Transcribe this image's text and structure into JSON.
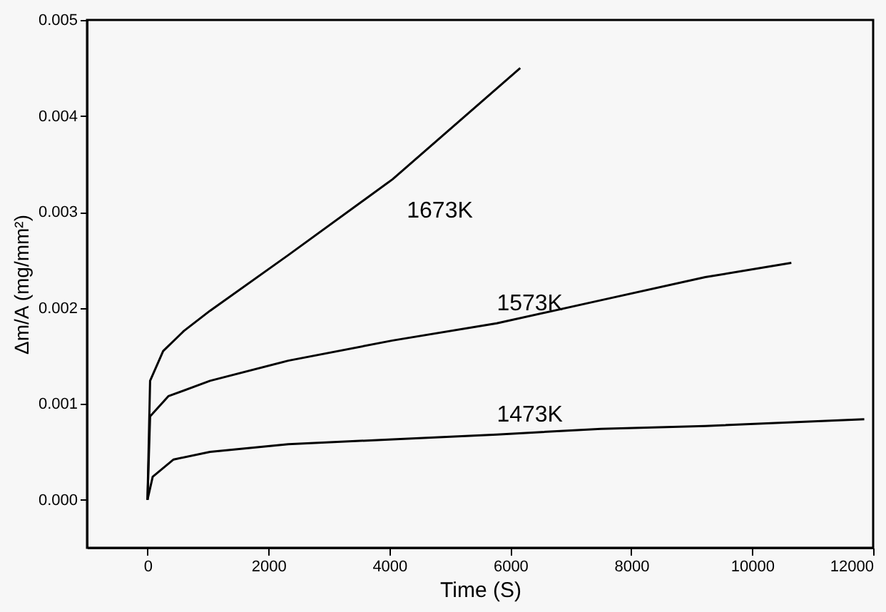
{
  "chart_data": {
    "type": "line",
    "xlabel": "Time (S)",
    "ylabel": "Δm/A (mg/mm²)",
    "xlim": [
      -1000,
      12000
    ],
    "xticks": [
      0,
      2000,
      4000,
      6000,
      8000,
      10000,
      12000
    ],
    "ylim": [
      -0.0005,
      0.005
    ],
    "yticks": [
      {
        "value": 0,
        "label": "0.000"
      },
      {
        "value": 0.001,
        "label": "0.001"
      },
      {
        "value": 0.002,
        "label": "0.002"
      },
      {
        "value": 0.003,
        "label": "0.003"
      },
      {
        "value": 0.004,
        "label": "0.004"
      },
      {
        "value": 0.005,
        "label": "0.005"
      }
    ],
    "grid": false,
    "marker": "none",
    "line_style": "solid",
    "series": [
      {
        "name": "1673K",
        "color": "#000000",
        "x": [
          0,
          43,
          259,
          603,
          1034,
          2328,
          4052,
          6164
        ],
        "values": [
          0,
          0.00124,
          0.00155,
          0.00176,
          0.00197,
          0.00255,
          0.00334,
          0.0045
        ]
      },
      {
        "name": "1573K",
        "color": "#000000",
        "x": [
          0,
          43,
          345,
          1034,
          2328,
          4052,
          5776,
          7500,
          9224,
          10647
        ],
        "values": [
          0,
          0.00087,
          0.00108,
          0.00124,
          0.00145,
          0.00166,
          0.00184,
          0.00208,
          0.00232,
          0.00247
        ]
      },
      {
        "name": "1473K",
        "color": "#000000",
        "x": [
          0,
          86,
          431,
          1034,
          2328,
          4052,
          5776,
          7500,
          9224,
          11853
        ],
        "values": [
          0,
          0.00024,
          0.00042,
          0.0005,
          0.00058,
          0.00063,
          0.00068,
          0.00074,
          0.00077,
          0.00084
        ]
      }
    ]
  }
}
